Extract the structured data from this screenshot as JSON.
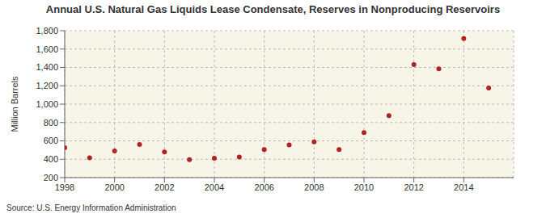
{
  "chart_data": {
    "type": "scatter",
    "title": "Annual U.S. Natural Gas Liquids Lease Condensate, Reserves in Nonproducing Reservoirs",
    "y_label": "Million Barrels",
    "source": "Source: U.S. Energy Information Administration",
    "x": [
      1998,
      1999,
      2000,
      2001,
      2002,
      2003,
      2004,
      2005,
      2006,
      2007,
      2008,
      2009,
      2010,
      2011,
      2012,
      2013,
      2014,
      2015
    ],
    "values": [
      525,
      415,
      490,
      560,
      480,
      395,
      410,
      425,
      505,
      555,
      590,
      505,
      690,
      875,
      1430,
      1385,
      1715,
      1175
    ],
    "color": "#b22222",
    "marker": "circle",
    "xlim": [
      1998,
      2016
    ],
    "xticks": [
      1998,
      2000,
      2002,
      2004,
      2006,
      2008,
      2010,
      2012,
      2014
    ],
    "ylim": [
      200,
      1800
    ],
    "yticks": [
      200,
      400,
      600,
      800,
      {
        "value": 1000,
        "label": "1,000"
      },
      {
        "value": 1200,
        "label": "1,200"
      },
      {
        "value": 1400,
        "label": "1,400"
      },
      {
        "value": 1600,
        "label": "1,600"
      },
      {
        "value": 1800,
        "label": "1,800"
      }
    ],
    "grid": true
  }
}
